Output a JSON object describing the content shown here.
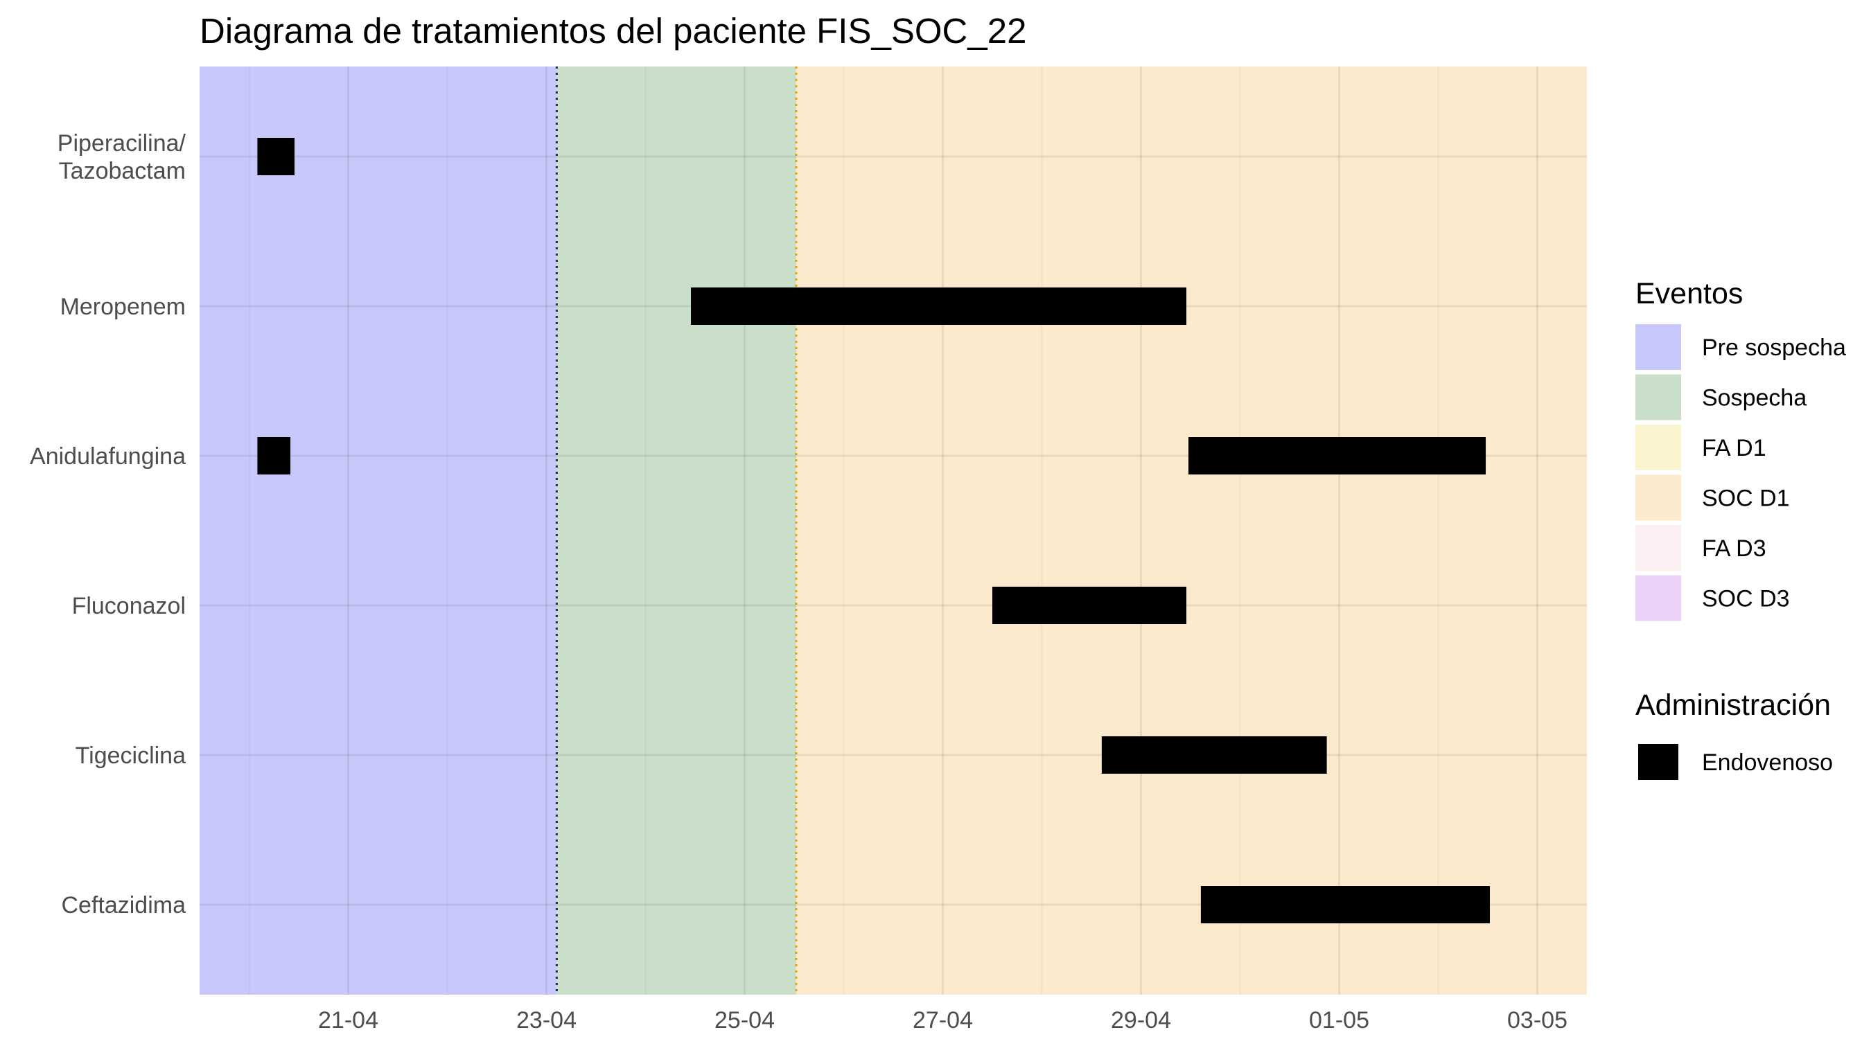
{
  "chart_data": {
    "type": "gantt",
    "title": "Diagrama de tratamientos del paciente FIS_SOC_22",
    "xlabel": "",
    "ylabel": "",
    "x_axis": {
      "type": "date",
      "year": 2000,
      "range": [
        "2000-04-19T12:00",
        "2000-05-03T12:00"
      ],
      "tick_values": [
        "2000-04-21",
        "2000-04-23",
        "2000-04-25",
        "2000-04-27",
        "2000-04-29",
        "2000-05-01",
        "2000-05-03"
      ],
      "tick_labels": [
        "21-04",
        "23-04",
        "25-04",
        "27-04",
        "29-04",
        "01-05",
        "03-05"
      ],
      "minor_ticks": [
        "2000-04-20",
        "2000-04-22",
        "2000-04-24",
        "2000-04-26",
        "2000-04-28",
        "2000-04-30",
        "2000-05-02"
      ]
    },
    "categories": [
      "Piperacilina/\nTazobactam",
      "Meropenem",
      "Anidulafungina",
      "Fluconazol",
      "Tigeciclina",
      "Ceftazidima"
    ],
    "event_periods": [
      {
        "event": "Pre sospecha",
        "start": "2000-04-19T12:00",
        "end": "2000-04-23T02:30"
      },
      {
        "event": "Sospecha",
        "start": "2000-04-23T02:30",
        "end": "2000-04-25T12:30"
      },
      {
        "event": "SOC D1",
        "start": "2000-04-25T12:30",
        "end": "2000-05-03T12:00"
      }
    ],
    "event_lines": [
      {
        "date": "2000-04-23T02:30",
        "color": "#1c2b5e",
        "style": "dotted"
      },
      {
        "date": "2000-04-25T12:30",
        "color": "#e69f00",
        "style": "dotted"
      }
    ],
    "series": [
      {
        "name": "Endovenoso",
        "color": "#000000",
        "bars": [
          {
            "drug": "Piperacilina/\nTazobactam",
            "start": "2000-04-20T02:00",
            "end": "2000-04-20T11:00"
          },
          {
            "drug": "Meropenem",
            "start": "2000-04-24T11:00",
            "end": "2000-04-29T11:00"
          },
          {
            "drug": "Anidulafungina",
            "start": "2000-04-20T02:00",
            "end": "2000-04-20T10:00"
          },
          {
            "drug": "Anidulafungina",
            "start": "2000-04-29T11:30",
            "end": "2000-05-02T11:30"
          },
          {
            "drug": "Fluconazol",
            "start": "2000-04-27T12:00",
            "end": "2000-04-29T11:00"
          },
          {
            "drug": "Tigeciclina",
            "start": "2000-04-28T14:30",
            "end": "2000-04-30T21:00"
          },
          {
            "drug": "Ceftazidima",
            "start": "2000-04-29T14:30",
            "end": "2000-05-02T12:30"
          }
        ]
      }
    ],
    "legends": [
      {
        "title": "Eventos",
        "items": [
          {
            "label": "Pre sospecha",
            "color": "#c8c9fa"
          },
          {
            "label": "Sospecha",
            "color": "#c9dfc9"
          },
          {
            "label": "FA D1",
            "color": "#fcf3cf"
          },
          {
            "label": "SOC D1",
            "color": "#fbeacb"
          },
          {
            "label": "FA D3",
            "color": "#fbeff2"
          },
          {
            "label": "SOC D3",
            "color": "#ead2f8"
          }
        ]
      },
      {
        "title": "Administración",
        "items": [
          {
            "label": "Endovenoso",
            "color": "#000000"
          }
        ]
      }
    ],
    "grid": true,
    "legend_position": "right"
  }
}
